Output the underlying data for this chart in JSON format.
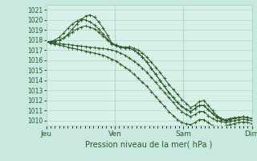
{
  "title": "Pression niveau de la mer( hPa )",
  "bg_color": "#c8e8e0",
  "plot_bg_color": "#d8f0e8",
  "grid_color": "#b0d8cc",
  "line_color": "#2d5a27",
  "ylim": [
    1009.5,
    1021.5
  ],
  "yticks": [
    1010,
    1011,
    1012,
    1013,
    1014,
    1015,
    1016,
    1017,
    1018,
    1019,
    1020,
    1021
  ],
  "day_labels": [
    "Jeu",
    "Ven",
    "Sam",
    "Dim"
  ],
  "day_positions": [
    0,
    1,
    2,
    3
  ],
  "series": [
    [
      1017.8,
      1017.85,
      1017.9,
      1018.0,
      1018.2,
      1018.6,
      1019.1,
      1019.6,
      1020.0,
      1020.4,
      1020.5,
      1020.3,
      1019.8,
      1019.2,
      1018.5,
      1017.7,
      1017.5,
      1017.3,
      1017.2,
      1017.35,
      1017.2,
      1017.0,
      1016.7,
      1016.3,
      1015.8,
      1015.3,
      1014.8,
      1014.2,
      1013.6,
      1013.1,
      1012.6,
      1012.1,
      1011.7,
      1011.3,
      1011.5,
      1011.9,
      1012.0,
      1011.5,
      1011.0,
      1010.5,
      1010.2,
      1010.0,
      1010.1,
      1010.2,
      1010.3,
      1010.4,
      1010.3,
      1010.2
    ],
    [
      1017.8,
      1017.85,
      1018.0,
      1018.3,
      1018.7,
      1019.2,
      1019.6,
      1019.9,
      1020.1,
      1020.0,
      1019.8,
      1019.5,
      1019.1,
      1018.6,
      1018.1,
      1017.7,
      1017.5,
      1017.35,
      1017.3,
      1017.2,
      1017.0,
      1016.7,
      1016.3,
      1015.8,
      1015.2,
      1014.6,
      1014.0,
      1013.4,
      1012.8,
      1012.3,
      1011.8,
      1011.4,
      1011.1,
      1010.9,
      1011.2,
      1011.5,
      1011.5,
      1011.1,
      1010.7,
      1010.3,
      1010.1,
      1010.0,
      1010.1,
      1010.2,
      1010.3,
      1010.35,
      1010.3,
      1010.2
    ],
    [
      1017.8,
      1017.8,
      1017.85,
      1018.0,
      1018.2,
      1018.5,
      1018.8,
      1019.1,
      1019.3,
      1019.4,
      1019.3,
      1019.1,
      1018.8,
      1018.4,
      1018.0,
      1017.6,
      1017.4,
      1017.3,
      1017.3,
      1017.2,
      1017.0,
      1016.7,
      1016.3,
      1015.8,
      1015.2,
      1014.6,
      1014.0,
      1013.4,
      1012.8,
      1012.3,
      1011.8,
      1011.4,
      1011.1,
      1010.9,
      1011.2,
      1011.5,
      1011.5,
      1011.1,
      1010.7,
      1010.4,
      1010.2,
      1010.1,
      1010.2,
      1010.3,
      1010.3,
      1010.35,
      1010.3,
      1010.2
    ],
    [
      1017.8,
      1017.75,
      1017.7,
      1017.65,
      1017.6,
      1017.55,
      1017.5,
      1017.45,
      1017.4,
      1017.35,
      1017.3,
      1017.25,
      1017.2,
      1017.15,
      1017.1,
      1017.0,
      1016.9,
      1016.7,
      1016.5,
      1016.2,
      1015.9,
      1015.6,
      1015.2,
      1014.8,
      1014.3,
      1013.8,
      1013.3,
      1012.8,
      1012.3,
      1011.8,
      1011.3,
      1010.9,
      1010.6,
      1010.4,
      1010.6,
      1010.9,
      1010.9,
      1010.5,
      1010.2,
      1010.0,
      1009.9,
      1009.8,
      1009.9,
      1010.0,
      1010.1,
      1010.15,
      1010.1,
      1010.0
    ],
    [
      1017.8,
      1017.7,
      1017.6,
      1017.5,
      1017.4,
      1017.3,
      1017.2,
      1017.1,
      1017.0,
      1016.9,
      1016.8,
      1016.7,
      1016.6,
      1016.5,
      1016.3,
      1016.1,
      1015.9,
      1015.6,
      1015.3,
      1015.0,
      1014.6,
      1014.2,
      1013.8,
      1013.4,
      1012.9,
      1012.4,
      1011.9,
      1011.4,
      1010.9,
      1010.5,
      1010.1,
      1009.8,
      1009.7,
      1009.6,
      1009.8,
      1010.1,
      1010.1,
      1009.8,
      1009.5,
      1009.4,
      1009.4,
      1009.5,
      1009.6,
      1009.7,
      1009.8,
      1009.85,
      1009.8,
      1009.7
    ]
  ]
}
